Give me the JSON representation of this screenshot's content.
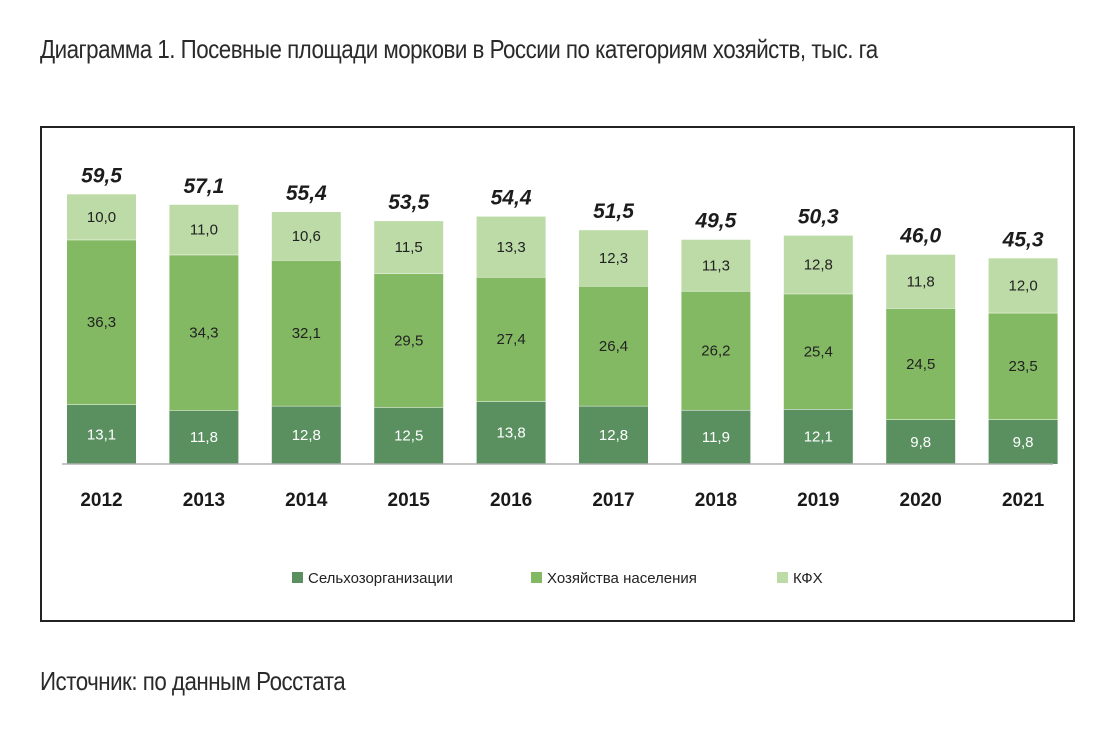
{
  "header": {
    "title": "Диаграмма 1. Посевные площади моркови в России по категориям хозяйств, тыс. га"
  },
  "footer": {
    "source": "Источник: по данным Росстата"
  },
  "chart_data": {
    "type": "bar",
    "stacked": true,
    "categories": [
      "2012",
      "2013",
      "2014",
      "2015",
      "2016",
      "2017",
      "2018",
      "2019",
      "2020",
      "2021"
    ],
    "series": [
      {
        "name": "Сельхозорганизации",
        "color": "#5a9060",
        "values": [
          13.1,
          11.8,
          12.8,
          12.5,
          13.8,
          12.8,
          11.9,
          12.1,
          9.8,
          9.8
        ],
        "labels": [
          "13,1",
          "11,8",
          "12,8",
          "12,5",
          "13,8",
          "12,8",
          "11,9",
          "12,1",
          "9,8",
          "9,8"
        ]
      },
      {
        "name": "Хозяйства населения",
        "color": "#84b964",
        "values": [
          36.3,
          34.3,
          32.1,
          29.5,
          27.4,
          26.4,
          26.2,
          25.4,
          24.5,
          23.5
        ],
        "labels": [
          "36,3",
          "34,3",
          "32,1",
          "29,5",
          "27,4",
          "26,4",
          "26,2",
          "25,4",
          "24,5",
          "23,5"
        ]
      },
      {
        "name": "КФХ",
        "color": "#bcdba6",
        "values": [
          10.0,
          11.0,
          10.6,
          11.5,
          13.3,
          12.3,
          11.3,
          12.8,
          11.8,
          12.0
        ],
        "labels": [
          "10,0",
          "11,0",
          "10,6",
          "11,5",
          "13,3",
          "12,3",
          "11,3",
          "12,8",
          "11,8",
          "12,0"
        ]
      }
    ],
    "totals": [
      59.5,
      57.1,
      55.4,
      53.5,
      54.4,
      51.5,
      49.5,
      50.3,
      46.0,
      45.3
    ],
    "total_labels": [
      "59,5",
      "57,1",
      "55,4",
      "53,5",
      "54,4",
      "51,5",
      "49,5",
      "50,3",
      "46,0",
      "45,3"
    ],
    "ylim": [
      0,
      60
    ],
    "grid": false,
    "legend_position": "bottom"
  }
}
